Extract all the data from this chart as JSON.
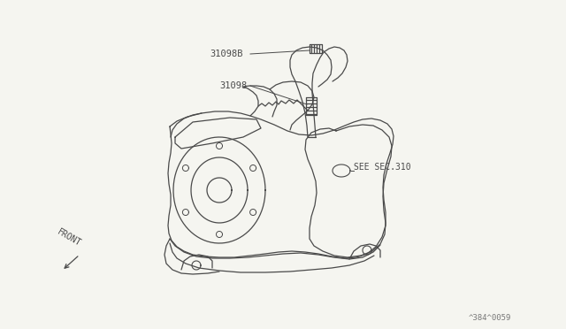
{
  "background_color": "#f5f5f0",
  "line_color": "#4a4a4a",
  "label_31098B": "31098B",
  "label_31098": "31098",
  "label_see_sec": "SEE SEC.310",
  "label_front": "FRONT",
  "label_code": "^384^0059",
  "fig_width": 6.4,
  "fig_height": 3.72,
  "dpi": 100
}
